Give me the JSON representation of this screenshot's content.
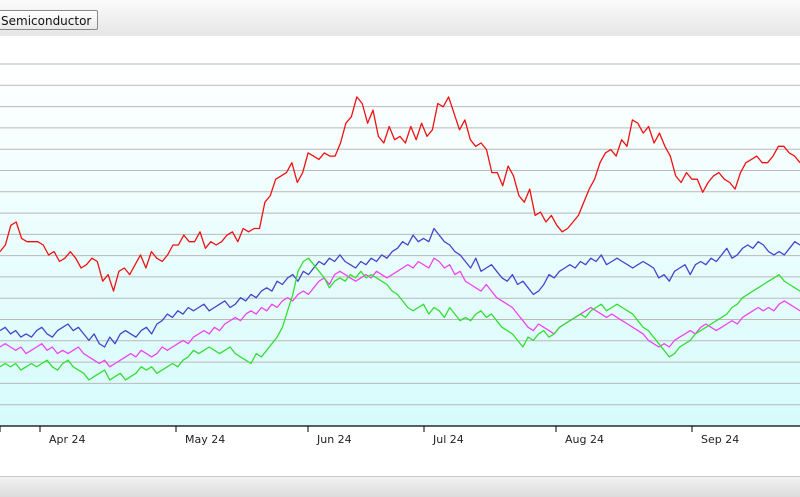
{
  "toolbar": {
    "tab_label": "Semiconductor"
  },
  "chart_data": {
    "type": "line",
    "title": "",
    "xlabel": "",
    "ylabel": "",
    "x_ticks": [
      "Apr 24",
      "May 24",
      "Jun 24",
      "Jul 24",
      "Aug 24",
      "Sep 24"
    ],
    "grid": true,
    "legend": "none",
    "series": [
      {
        "color": "#ee1111",
        "values": [
          -27,
          -25,
          -19,
          -18,
          -23,
          -24,
          -24,
          -24,
          -25,
          -28,
          -27,
          -30,
          -29,
          -27,
          -29,
          -32,
          -31,
          -29,
          -30,
          -36,
          -34,
          -39,
          -33,
          -32,
          -34,
          -31,
          -28,
          -32,
          -27,
          -29,
          -30,
          -28,
          -25,
          -25,
          -22,
          -24,
          -24,
          -21,
          -26,
          -24,
          -25,
          -24,
          -22,
          -21,
          -24,
          -20,
          -21,
          -20,
          -20,
          -12,
          -10,
          -5,
          -4,
          -3,
          0,
          -6,
          -3,
          3,
          2,
          1,
          3,
          2,
          2,
          6,
          12,
          14,
          20,
          18,
          12,
          16,
          8,
          6,
          11,
          7,
          8,
          6,
          11,
          7,
          12,
          8,
          10,
          18,
          17,
          20,
          15,
          10,
          13,
          7,
          5,
          6,
          4,
          -3,
          -3,
          -7,
          -1,
          -4,
          -10,
          -12,
          -8,
          -16,
          -15,
          -18,
          -16,
          -19,
          -21,
          -20,
          -18,
          -16,
          -12,
          -8,
          -5,
          0,
          3,
          4,
          2,
          7,
          5,
          13,
          12,
          9,
          11,
          6,
          9,
          5,
          2,
          -4,
          -6,
          -3,
          -5,
          -5,
          -9,
          -6,
          -4,
          -3,
          -5,
          -6,
          -8,
          -3,
          0,
          1,
          2,
          0,
          0,
          2,
          5,
          5,
          3,
          2,
          0
        ],
        "smooth": false
      },
      {
        "color": "#4444cc",
        "values": [
          -51,
          -50,
          -52,
          -51,
          -53,
          -52,
          -53,
          -51,
          -50,
          -52,
          -53,
          -51,
          -50,
          -49,
          -51,
          -50,
          -52,
          -54,
          -52,
          -55,
          -56,
          -53,
          -55,
          -52,
          -51,
          -52,
          -53,
          -51,
          -50,
          -52,
          -49,
          -48,
          -46,
          -47,
          -45,
          -46,
          -44,
          -45,
          -44,
          -43,
          -45,
          -44,
          -43,
          -42,
          -44,
          -43,
          -41,
          -42,
          -40,
          -41,
          -39,
          -38,
          -39,
          -36,
          -37,
          -35,
          -34,
          -36,
          -33,
          -34,
          -32,
          -30,
          -31,
          -29,
          -30,
          -28,
          -30,
          -31,
          -32,
          -30,
          -31,
          -29,
          -30,
          -28,
          -29,
          -27,
          -26,
          -24,
          -25,
          -22,
          -24,
          -23,
          -24,
          -20,
          -22,
          -24,
          -25,
          -27,
          -28,
          -30,
          -32,
          -29,
          -33,
          -32,
          -31,
          -33,
          -35,
          -36,
          -34,
          -37,
          -36,
          -38,
          -40,
          -39,
          -37,
          -34,
          -35,
          -33,
          -32,
          -31,
          -32,
          -30,
          -31,
          -29,
          -30,
          -28,
          -31,
          -30,
          -29,
          -30,
          -31,
          -32,
          -31,
          -30,
          -31,
          -32,
          -35,
          -34,
          -36,
          -33,
          -32,
          -31,
          -34,
          -31,
          -30,
          -31,
          -29,
          -30,
          -28,
          -26,
          -29,
          -28,
          -26,
          -25,
          -26,
          -24,
          -25,
          -27,
          -28,
          -27,
          -28,
          -26,
          -24,
          -25
        ],
        "smooth": false
      },
      {
        "color": "#ee44ee",
        "values": [
          -56,
          -55,
          -56,
          -57,
          -56,
          -58,
          -57,
          -56,
          -55,
          -57,
          -56,
          -58,
          -57,
          -58,
          -57,
          -56,
          -58,
          -59,
          -60,
          -61,
          -60,
          -62,
          -61,
          -60,
          -59,
          -58,
          -59,
          -57,
          -58,
          -59,
          -58,
          -56,
          -57,
          -56,
          -55,
          -54,
          -55,
          -53,
          -52,
          -51,
          -52,
          -50,
          -51,
          -49,
          -48,
          -47,
          -48,
          -46,
          -45,
          -46,
          -44,
          -45,
          -43,
          -44,
          -42,
          -41,
          -42,
          -40,
          -39,
          -40,
          -38,
          -36,
          -35,
          -37,
          -34,
          -33,
          -34,
          -35,
          -36,
          -35,
          -34,
          -35,
          -33,
          -34,
          -35,
          -34,
          -33,
          -32,
          -31,
          -32,
          -30,
          -31,
          -32,
          -29,
          -30,
          -32,
          -31,
          -34,
          -33,
          -36,
          -37,
          -38,
          -39,
          -37,
          -39,
          -41,
          -42,
          -43,
          -44,
          -46,
          -48,
          -50,
          -51,
          -49,
          -50,
          -51,
          -52,
          -50,
          -49,
          -48,
          -47,
          -46,
          -45,
          -44,
          -45,
          -46,
          -47,
          -46,
          -47,
          -48,
          -49,
          -50,
          -51,
          -52,
          -54,
          -55,
          -56,
          -55,
          -56,
          -54,
          -53,
          -52,
          -51,
          -52,
          -50,
          -49,
          -50,
          -51,
          -50,
          -49,
          -48,
          -49,
          -47,
          -46,
          -45,
          -44,
          -45,
          -44,
          -45,
          -43,
          -42,
          -43,
          -44,
          -45
        ],
        "smooth": false
      },
      {
        "color": "#33dd33",
        "values": [
          -62,
          -61,
          -62,
          -61,
          -63,
          -62,
          -61,
          -62,
          -61,
          -60,
          -62,
          -63,
          -61,
          -60,
          -62,
          -63,
          -64,
          -66,
          -65,
          -64,
          -63,
          -66,
          -65,
          -64,
          -66,
          -65,
          -64,
          -62,
          -63,
          -62,
          -64,
          -63,
          -62,
          -61,
          -62,
          -60,
          -59,
          -57,
          -58,
          -57,
          -56,
          -57,
          -58,
          -57,
          -56,
          -58,
          -59,
          -60,
          -61,
          -58,
          -59,
          -57,
          -55,
          -53,
          -50,
          -45,
          -40,
          -33,
          -30,
          -29,
          -31,
          -33,
          -35,
          -38,
          -36,
          -35,
          -36,
          -34,
          -35,
          -33,
          -35,
          -34,
          -35,
          -36,
          -37,
          -39,
          -40,
          -42,
          -44,
          -45,
          -44,
          -43,
          -46,
          -44,
          -45,
          -47,
          -44,
          -46,
          -48,
          -47,
          -48,
          -46,
          -45,
          -47,
          -46,
          -48,
          -50,
          -51,
          -52,
          -54,
          -56,
          -53,
          -54,
          -52,
          -51,
          -53,
          -52,
          -50,
          -49,
          -48,
          -47,
          -46,
          -47,
          -45,
          -44,
          -43,
          -45,
          -44,
          -43,
          -44,
          -45,
          -46,
          -48,
          -50,
          -51,
          -53,
          -55,
          -57,
          -59,
          -58,
          -56,
          -55,
          -54,
          -52,
          -51,
          -50,
          -49,
          -48,
          -47,
          -46,
          -44,
          -43,
          -41,
          -40,
          -39,
          -38,
          -37,
          -36,
          -35,
          -34,
          -36,
          -37,
          -38,
          -39
        ]
      }
    ]
  }
}
